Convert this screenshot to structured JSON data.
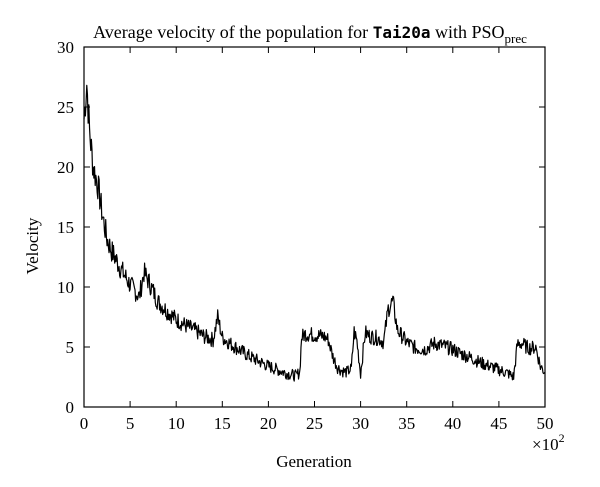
{
  "chart_data": {
    "type": "line",
    "title": {
      "prefix": "Average velocity of the population for ",
      "dataset": "Tai20a",
      "middle": " with PSO",
      "subscript": "prec"
    },
    "xlabel": "Generation",
    "ylabel": "Velocity",
    "x_multiplier": {
      "base": "×10",
      "exponent": "2"
    },
    "xlim": [
      0,
      50
    ],
    "ylim": [
      0,
      30
    ],
    "xticks": [
      0,
      5,
      10,
      15,
      20,
      25,
      30,
      35,
      40,
      45,
      50
    ],
    "yticks": [
      0,
      5,
      10,
      15,
      20,
      25,
      30
    ],
    "grid": false,
    "series": [
      {
        "color": "#000000",
        "x": [
          0,
          0.3,
          0.6,
          1,
          1.5,
          2,
          2.5,
          3,
          4,
          5,
          6,
          6.5,
          7,
          8,
          9,
          10,
          11,
          12,
          13,
          14,
          14.5,
          15,
          16,
          17,
          18,
          19,
          20,
          21,
          22,
          23,
          23.4,
          23.6,
          24,
          25,
          26,
          26.5,
          27,
          27.5,
          28,
          28.5,
          29,
          29.3,
          29.6,
          30,
          30.5,
          31,
          32,
          32.5,
          33,
          33.5,
          34,
          35,
          36,
          37,
          38,
          39,
          40,
          41,
          42,
          43,
          44,
          45,
          46,
          46.6,
          47,
          47.5,
          48,
          48.5,
          49,
          49.5,
          50
        ],
        "y": [
          24,
          27,
          23,
          20,
          18.5,
          16,
          14,
          13,
          11.5,
          10.2,
          9.2,
          11.2,
          10.5,
          8.8,
          8.0,
          7.3,
          6.8,
          6.4,
          5.9,
          5.6,
          7.5,
          5.8,
          5.2,
          4.7,
          4.2,
          3.8,
          3.4,
          3.1,
          2.8,
          2.6,
          2.9,
          5.8,
          6.1,
          6.0,
          5.9,
          5.6,
          4.2,
          3.3,
          3.0,
          2.9,
          3.2,
          6.3,
          5.5,
          2.8,
          6.2,
          5.9,
          5.7,
          5.4,
          8.2,
          8.8,
          6.4,
          5.4,
          4.9,
          4.8,
          5.3,
          5.1,
          4.8,
          4.4,
          4.1,
          3.7,
          3.4,
          3.1,
          2.8,
          2.5,
          5.2,
          5.3,
          5.0,
          4.9,
          5.0,
          3.4,
          2.9
        ]
      }
    ]
  }
}
